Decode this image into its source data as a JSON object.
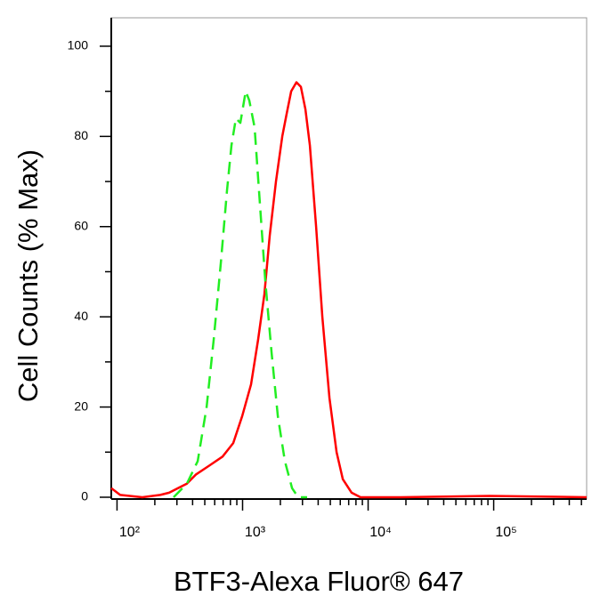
{
  "chart_data": {
    "type": "line",
    "x_label": "BTF3-Alexa Fluor® 647",
    "y_label": "Cell Counts (% Max)",
    "xscale": "log",
    "xlim": [
      90,
      550000
    ],
    "ylim": [
      -0.4,
      106.3
    ],
    "xticks": [
      {
        "value": 100,
        "label": "10²"
      },
      {
        "value": 1000,
        "label": "10³"
      },
      {
        "value": 10000,
        "label": "10⁴"
      },
      {
        "value": 100000,
        "label": "10⁵"
      }
    ],
    "x_minor_ticks": [
      200,
      300,
      400,
      500,
      600,
      700,
      800,
      900,
      2000,
      3000,
      4000,
      5000,
      6000,
      7000,
      8000,
      9000,
      20000,
      30000,
      40000,
      50000,
      60000,
      70000,
      80000,
      90000,
      200000,
      300000,
      400000,
      500000
    ],
    "yticks": [
      0,
      20,
      40,
      60,
      80,
      100
    ],
    "y_minor_ticks": [
      10,
      30,
      50,
      70,
      90
    ],
    "series": [
      {
        "color": "#ff0000",
        "dashed": false,
        "x": [
          90,
          106,
          159,
          221,
          260,
          306,
          360,
          424,
          542,
          693,
          843,
          993,
          1168,
          1330,
          1492,
          1645,
          1845,
          2070,
          2245,
          2437,
          2685,
          2915,
          3165,
          3434,
          3853,
          4318,
          4920,
          5604,
          6283,
          7392,
          8702,
          18150,
          92900,
          550000
        ],
        "values": [
          2,
          0.5,
          0,
          0.5,
          1,
          2,
          3,
          5,
          7,
          9,
          12,
          18,
          25,
          35,
          45,
          58,
          70,
          80,
          85,
          90,
          92,
          91,
          86,
          78,
          60,
          40,
          22,
          10,
          4,
          1,
          0,
          0,
          0.3,
          0
        ]
      },
      {
        "color": "#22ee22",
        "dashed": true,
        "x": [
          282,
          360,
          439,
          517,
          589,
          671,
          752,
          815,
          885,
          960,
          1059,
          1131,
          1247,
          1376,
          1517,
          1702,
          1908,
          2171,
          2477,
          2775,
          3268
        ],
        "values": [
          0,
          3,
          8,
          20,
          35,
          52,
          68,
          78,
          84,
          83,
          90,
          88,
          82,
          65,
          48,
          32,
          18,
          8,
          2,
          0,
          0
        ]
      }
    ]
  }
}
